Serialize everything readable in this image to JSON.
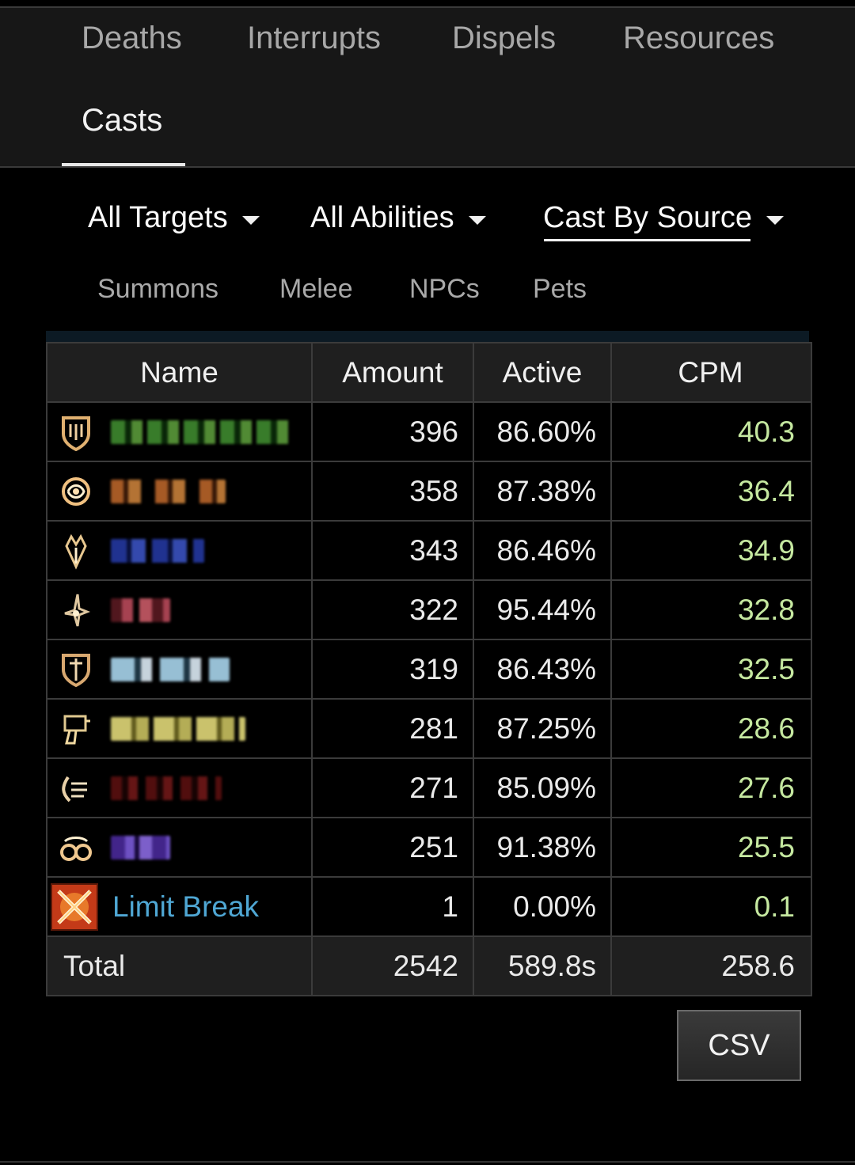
{
  "tabs": [
    {
      "label": "Deaths"
    },
    {
      "label": "Interrupts"
    },
    {
      "label": "Dispels"
    },
    {
      "label": "Resources"
    },
    {
      "label": "Casts"
    }
  ],
  "active_tab": "Casts",
  "filters": {
    "targets": "All Targets",
    "abilities": "All Abilities",
    "cast_by": "Cast By Source"
  },
  "subfilters": [
    "Summons",
    "Melee",
    "NPCs",
    "Pets"
  ],
  "table": {
    "headers": {
      "name": "Name",
      "amount": "Amount",
      "active": "Active",
      "cpm": "CPM"
    },
    "rows": [
      {
        "icon": "paladin-shield-icon",
        "amount": "396",
        "active": "86.60%",
        "cpm": "40.3",
        "name_color": "#3a7a2a"
      },
      {
        "icon": "astrologian-icon",
        "amount": "358",
        "active": "87.38%",
        "cpm": "36.4",
        "name_color": "#b86a2a"
      },
      {
        "icon": "dragoon-icon",
        "amount": "343",
        "active": "86.46%",
        "cpm": "34.9",
        "name_color": "#2a3fa0"
      },
      {
        "icon": "ninja-icon",
        "amount": "322",
        "active": "95.44%",
        "cpm": "32.8",
        "name_color": "#9a3a45"
      },
      {
        "icon": "warrior-icon",
        "amount": "319",
        "active": "86.43%",
        "cpm": "32.5",
        "name_color": "#9ec8e0"
      },
      {
        "icon": "machinist-icon",
        "amount": "281",
        "active": "87.25%",
        "cpm": "28.6",
        "name_color": "#d8d070"
      },
      {
        "icon": "bard-icon",
        "amount": "271",
        "active": "85.09%",
        "cpm": "27.6",
        "name_color": "#5a1414"
      },
      {
        "icon": "summoner-icon",
        "amount": "251",
        "active": "91.38%",
        "cpm": "25.5",
        "name_color": "#6a4ac8"
      }
    ],
    "limit_break": {
      "icon": "limit-break-icon",
      "name": "Limit Break",
      "amount": "1",
      "active": "0.00%",
      "cpm": "0.1"
    },
    "total": {
      "label": "Total",
      "amount": "2542",
      "active": "589.8s",
      "cpm": "258.6"
    }
  },
  "csv_label": "CSV"
}
